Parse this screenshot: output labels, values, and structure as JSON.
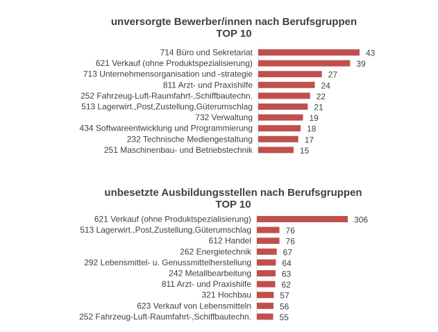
{
  "chart_data": [
    {
      "type": "bar",
      "orientation": "horizontal",
      "title": "unversorgte Bewerber/innen nach Berufsgruppen",
      "subtitle": "TOP 10",
      "categories": [
        "714 Büro und Sekretariat",
        "621 Verkauf (ohne Produktspezialisierung)",
        "713 Unternehmensorganisation und -strategie",
        "811 Arzt- und Praxishilfe",
        "252 Fahrzeug-Luft-Raumfahrt-,Schiffbautechn.",
        "513 Lagerwirt.,Post,Zustellung,Güterumschlag",
        "732 Verwaltung",
        "434 Softwareentwicklung und Programmierung",
        "232 Technische Mediengestaltung",
        "251 Maschinenbau- und Betriebstechnik"
      ],
      "values": [
        43,
        39,
        27,
        24,
        22,
        21,
        19,
        18,
        17,
        15
      ],
      "bar_color": "#c0504d",
      "grid": false,
      "legend": "none"
    },
    {
      "type": "bar",
      "orientation": "horizontal",
      "title": "unbesetzte Ausbildungsstellen nach Berufsgruppen",
      "subtitle": "TOP 10",
      "categories": [
        "621 Verkauf (ohne Produktspezialisierung)",
        "513 Lagerwirt.,Post,Zustellung,Güterumschlag",
        "612 Handel",
        "262 Energietechnik",
        "292 Lebensmittel- u. Genussmittelherstellung",
        "242 Metallbearbeitung",
        "811 Arzt- und Praxishilfe",
        "321 Hochbau",
        "623 Verkauf von Lebensmitteln",
        "252 Fahrzeug-Luft-Raumfahrt-,Schiffbautechn."
      ],
      "values": [
        306,
        76,
        76,
        67,
        64,
        63,
        62,
        57,
        56,
        55
      ],
      "bar_color": "#c0504d",
      "grid": false,
      "legend": "none"
    }
  ]
}
